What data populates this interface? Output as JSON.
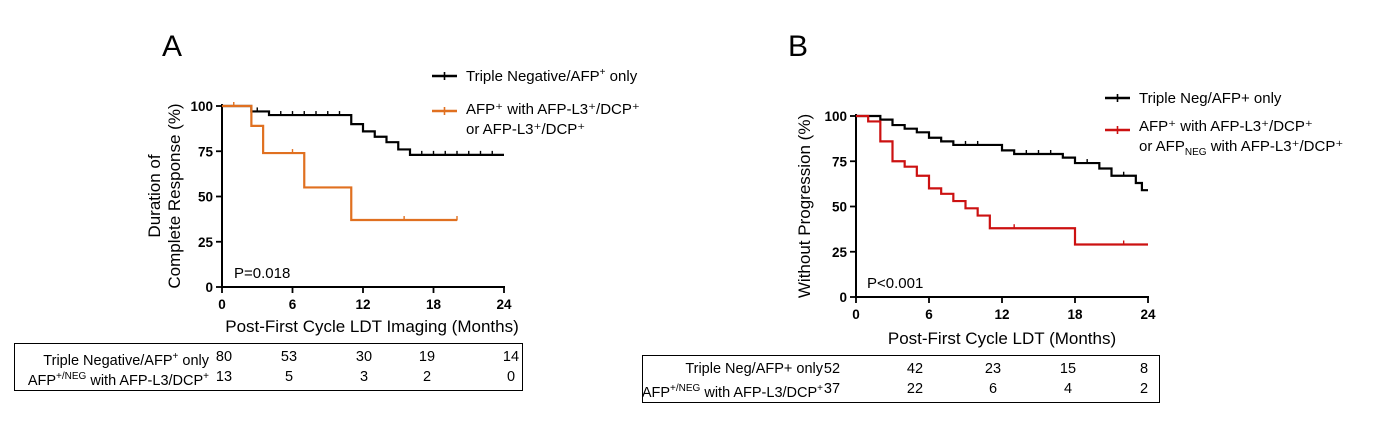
{
  "chart_data": [
    {
      "id": "A",
      "type": "line",
      "panel_label": "A",
      "xlabel": "Post-First Cycle LDT Imaging (Months)",
      "ylabel_line1": "Duration of",
      "ylabel_line2": "Complete Response (%)",
      "xlim": [
        0,
        24
      ],
      "ylim": [
        0,
        100
      ],
      "xticks": [
        0,
        6,
        12,
        18,
        24
      ],
      "yticks": [
        0,
        25,
        50,
        75,
        100
      ],
      "annotation": "P=0.018",
      "legend": [
        {
          "base": "Triple Negative/AFP",
          "sup": "+",
          "tail": " only"
        },
        {
          "line1": "AFP⁺ with AFP-L3⁺/DCP⁺",
          "line2": "or AFP-L3⁺/DCP⁺"
        }
      ],
      "series": [
        {
          "name": "Triple Negative/AFP+ only",
          "color": "#000000",
          "steps": [
            [
              0,
              100
            ],
            [
              2.5,
              97
            ],
            [
              4,
              95
            ],
            [
              11,
              90
            ],
            [
              12,
              86
            ],
            [
              13,
              83
            ],
            [
              14,
              80
            ],
            [
              15,
              76
            ],
            [
              16,
              73
            ],
            [
              24,
              73
            ]
          ],
          "censors": [
            3,
            5,
            6,
            7,
            8,
            9,
            10,
            17,
            18,
            19,
            20,
            21,
            22,
            23
          ]
        },
        {
          "name": "AFP+ with AFP-L3+/DCP+ or AFP-L3+/DCP+",
          "color": "#e07020",
          "steps": [
            [
              0,
              100
            ],
            [
              2.5,
              89
            ],
            [
              3.5,
              74
            ],
            [
              7,
              55
            ],
            [
              11,
              37
            ],
            [
              20,
              37
            ]
          ],
          "censors": [
            1,
            6,
            15.5,
            20
          ]
        }
      ],
      "risk_table": {
        "rows": [
          {
            "label_base": "Triple Negative/AFP",
            "label_sup": "+",
            "label_tail": " only",
            "values": [
              80,
              53,
              30,
              19,
              14
            ]
          },
          {
            "label_base": "AFP",
            "label_sup": "+/NEG",
            "label_tail": " with AFP-L3/DCP",
            "label_sup2": "+",
            "values": [
              13,
              5,
              3,
              2,
              0
            ]
          }
        ]
      }
    },
    {
      "id": "B",
      "type": "line",
      "panel_label": "B",
      "xlabel": "Post-First Cycle LDT (Months)",
      "ylabel_line1": "Without Progression (%)",
      "xlim": [
        0,
        24
      ],
      "ylim": [
        0,
        100
      ],
      "xticks": [
        0,
        6,
        12,
        18,
        24
      ],
      "yticks": [
        0,
        25,
        50,
        75,
        100
      ],
      "annotation": "P<0.001",
      "legend": [
        {
          "base": "Triple Neg/AFP+ only"
        },
        {
          "line1": "AFP⁺ with AFP-L3⁺/DCP⁺",
          "line2": "or AFP with AFP-L3⁺/DCP⁺",
          "line2_sub": "NEG"
        }
      ],
      "series": [
        {
          "name": "Triple Neg/AFP+ only",
          "color": "#000000",
          "steps": [
            [
              0,
              100
            ],
            [
              2,
              98
            ],
            [
              3,
              95
            ],
            [
              4,
              93
            ],
            [
              5,
              91
            ],
            [
              6,
              88
            ],
            [
              7,
              86
            ],
            [
              8,
              84
            ],
            [
              12,
              81
            ],
            [
              13,
              79
            ],
            [
              17,
              77
            ],
            [
              18,
              74
            ],
            [
              20,
              71
            ],
            [
              21,
              67
            ],
            [
              23,
              63
            ],
            [
              23.5,
              59
            ],
            [
              24,
              59
            ]
          ],
          "censors": [
            9,
            10,
            14,
            15,
            16,
            19,
            22
          ]
        },
        {
          "name": "AFP+ with AFP-L3+/DCP+ or AFPNEG with AFP-L3+/DCP+",
          "color": "#cc1111",
          "steps": [
            [
              0,
              100
            ],
            [
              1,
              97
            ],
            [
              2,
              86
            ],
            [
              3,
              75
            ],
            [
              4,
              72
            ],
            [
              5,
              67
            ],
            [
              6,
              60
            ],
            [
              7,
              57
            ],
            [
              8,
              53
            ],
            [
              9,
              49
            ],
            [
              10,
              45
            ],
            [
              11,
              38
            ],
            [
              18,
              29
            ],
            [
              24,
              29
            ]
          ],
          "censors": [
            13,
            22
          ]
        }
      ],
      "risk_table": {
        "rows": [
          {
            "label_base": "Triple Neg/AFP+ only",
            "values": [
              52,
              42,
              23,
              15,
              8
            ]
          },
          {
            "label_base": "AFP",
            "label_sup": "+/NEG",
            "label_tail": " with AFP-L3/DCP",
            "label_sup2": "+",
            "values": [
              37,
              22,
              6,
              4,
              2
            ]
          }
        ]
      }
    }
  ]
}
